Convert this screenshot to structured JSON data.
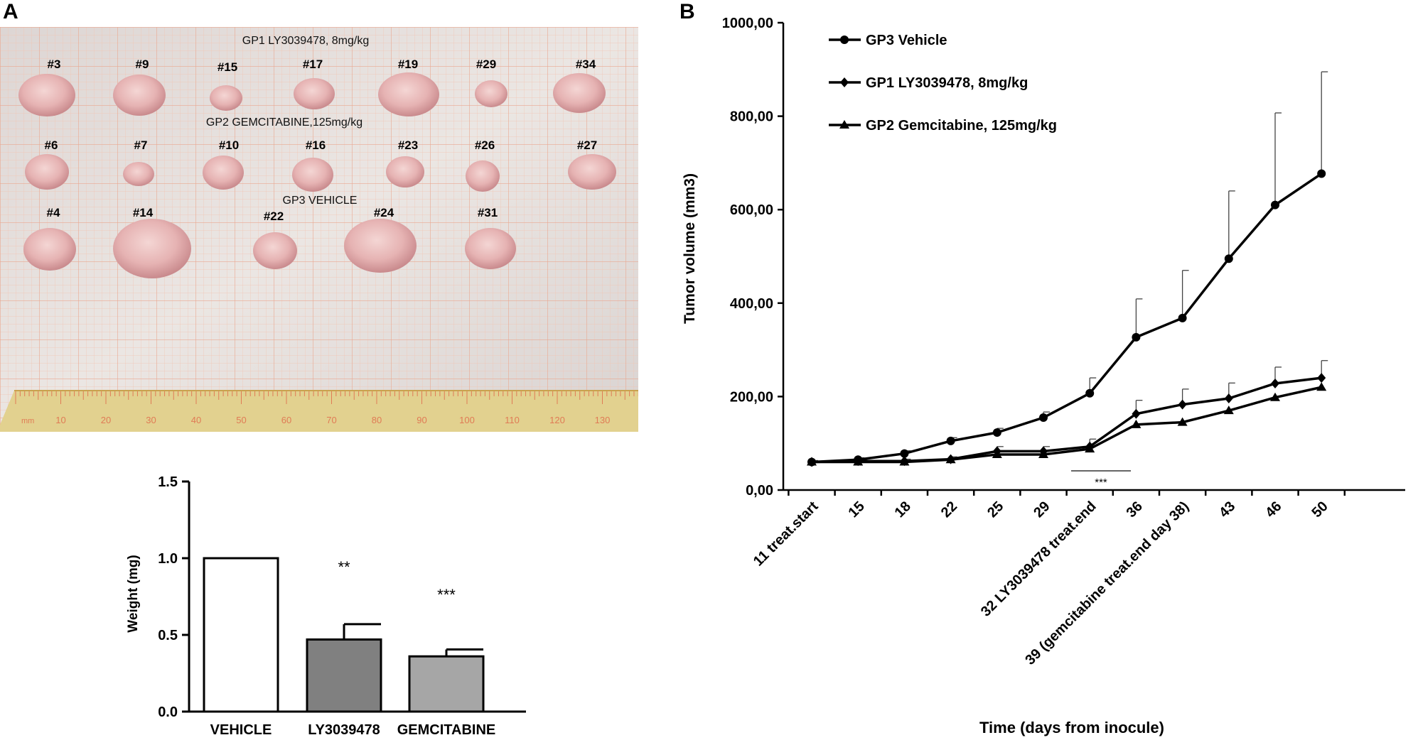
{
  "panel_labels": {
    "a": "A",
    "b": "B"
  },
  "photo": {
    "group_labels": {
      "gp1": "GP1 LY3039478, 8mg/kg",
      "gp2": "GP2 GEMCITABINE,125mg/kg",
      "gp3": "GP3 VEHICLE"
    },
    "row1_ids": [
      "#3",
      "#9",
      "#15",
      "#17",
      "#19",
      "#29",
      "#34"
    ],
    "row2_ids": [
      "#6",
      "#7",
      "#10",
      "#16",
      "#23",
      "#26",
      "#27"
    ],
    "row3_ids": [
      "#4",
      "#14",
      "#22",
      "#24",
      "#31"
    ],
    "ruler_labels": [
      "10",
      "20",
      "30",
      "40",
      "50",
      "60",
      "70",
      "80",
      "90",
      "100",
      "110",
      "120",
      "130"
    ],
    "ruler_unit": "mm",
    "colors": {
      "paper": "#e8e2df",
      "grid": "#efb39c",
      "ruler": "#e0cf8c",
      "tumor": "#e9b9b8"
    }
  },
  "chart_data": [
    {
      "type": "bar",
      "title": "",
      "xlabel": "",
      "ylabel": "Weight (mg)",
      "ylim": [
        0,
        1.5
      ],
      "yticks": [
        "0.0",
        "0.5",
        "1.0",
        "1.5"
      ],
      "categories": [
        "VEHICLE",
        "LY3039478",
        "GEMCITABINE"
      ],
      "values": [
        1.0,
        0.47,
        0.36
      ],
      "errors": [
        0,
        0.1,
        0.045
      ],
      "significance": [
        "",
        "**",
        "***"
      ],
      "colors": [
        "#ffffff",
        "#808080",
        "#a6a6a6"
      ]
    },
    {
      "type": "line",
      "title": "",
      "xlabel": "Time (days from inocule)",
      "ylabel": "Tumor volume (mm3)",
      "ylim": [
        0,
        1000
      ],
      "yticks": [
        "0,00",
        "200,00",
        "400,00",
        "600,00",
        "800,00",
        "1000,00"
      ],
      "categories": [
        "11 treat.start",
        "15",
        "18",
        "22",
        "25",
        "29",
        "32 LY3039478 treat.end",
        "36",
        "39 (gemcitabine treat.end day 38)",
        "43",
        "46",
        "50"
      ],
      "series": [
        {
          "name": "GP3 Vehicle",
          "marker": "circle",
          "values": [
            60,
            65,
            78,
            105,
            123,
            155,
            207,
            327,
            368,
            495,
            610,
            677
          ],
          "errors": [
            3,
            4,
            6,
            7,
            9,
            12,
            33,
            82,
            102,
            145,
            197,
            218
          ]
        },
        {
          "name": "GP1 LY3039478, 8mg/kg",
          "marker": "diamond",
          "values": [
            60,
            62,
            62,
            66,
            83,
            83,
            93,
            163,
            183,
            196,
            228,
            240
          ],
          "errors": [
            3,
            3,
            4,
            5,
            10,
            10,
            16,
            29,
            33,
            33,
            35,
            37
          ]
        },
        {
          "name": "GP2 Gemcitabine, 125mg/kg",
          "marker": "triangle",
          "values": [
            60,
            60,
            60,
            65,
            76,
            76,
            88,
            140,
            145,
            170,
            198,
            220
          ],
          "errors": [
            0,
            0,
            0,
            0,
            0,
            0,
            0,
            0,
            0,
            0,
            0,
            0
          ]
        }
      ],
      "annotation": "***",
      "legend": "top-left"
    }
  ]
}
